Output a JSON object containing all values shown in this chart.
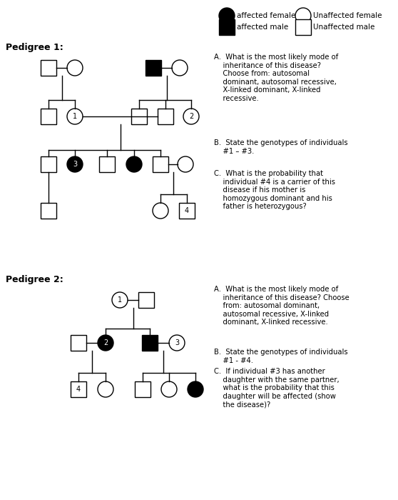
{
  "legend": {
    "affected_female_label": "affected female",
    "unaffected_female_label": "Unaffected female",
    "affected_male_label": "affected male",
    "unaffected_male_label": "Unaffected male"
  },
  "pedigree1": {
    "title": "Pedigree 1:",
    "q1": "A.  What is the most likely mode of\n    inheritance of this disease?\n    Choose from: autosomal\n    dominant, autosomal recessive,\n    X-linked dominant, X-linked\n    recessive.",
    "q2": "B.  State the genotypes of individuals\n    #1 – #3.",
    "q3": "C.  What is the probability that\n    individual #4 is a carrier of this\n    disease if his mother is\n    homozygous dominant and his\n    father is heterozygous?"
  },
  "pedigree2": {
    "title": "Pedigree 2:",
    "q1": "A.  What is the most likely mode of\n    inheritance of this disease? Choose\n    from: autosomal dominant,\n    autosomal recessive, X-linked\n    dominant, X-linked recessive.",
    "q2": "B.  State the genotypes of individuals\n    #1 - #4.",
    "q3": "C.  If individual #3 has another\n    daughter with the same partner,\n    what is the probability that this\n    daughter will be affected (show\n    the disease)?"
  },
  "bg_color": "#ffffff",
  "text_color": "#000000"
}
